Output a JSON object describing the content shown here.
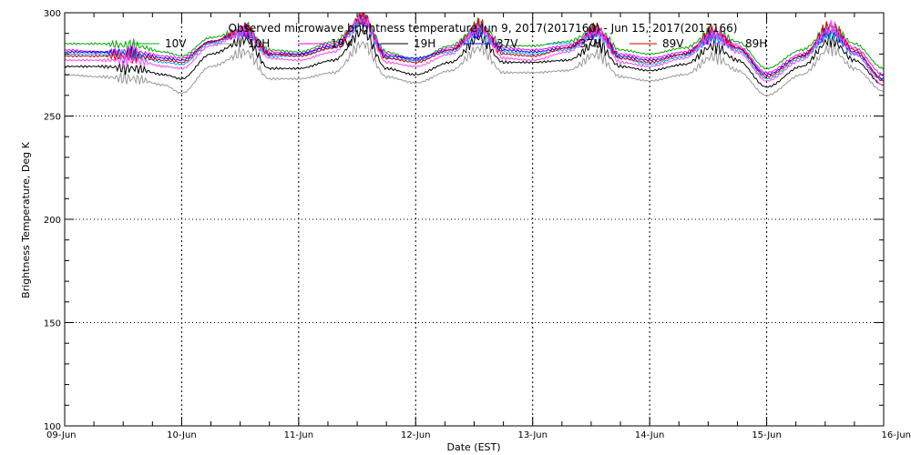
{
  "chart_data": {
    "type": "line",
    "title": "Observed microwave brightness temperature Jun  9, 2017(2017160) - Jun 15, 2017(2017166)",
    "xlabel": "Date (EST)",
    "ylabel": "Brightness Temperature, Deg K",
    "ylim": [
      100,
      300
    ],
    "yticks": [
      100,
      150,
      200,
      250,
      300
    ],
    "xticks": [
      "09-Jun",
      "10-Jun",
      "11-Jun",
      "12-Jun",
      "13-Jun",
      "14-Jun",
      "15-Jun",
      "16-Jun"
    ],
    "xlim_days": [
      0,
      7
    ],
    "grid": true,
    "legend_placement": "top",
    "key_days": [
      0,
      0.3,
      0.6,
      0.85,
      1.0,
      1.25,
      1.55,
      1.75,
      2.0,
      2.3,
      2.55,
      2.75,
      3.0,
      3.3,
      3.55,
      3.75,
      4.0,
      4.3,
      4.55,
      4.75,
      5.0,
      5.3,
      5.55,
      5.75,
      6.0,
      6.3,
      6.55,
      6.75,
      7.0
    ],
    "series": [
      {
        "name": "10V",
        "color": "#00aa00",
        "values": [
          285,
          285,
          284,
          281,
          279,
          288,
          292,
          282,
          281,
          286,
          298,
          281,
          277,
          284,
          294,
          284,
          284,
          286,
          292,
          282,
          280,
          283,
          291,
          286,
          273,
          282,
          293,
          285,
          273
        ]
      },
      {
        "name": "10H",
        "color": "#999999",
        "values": [
          270,
          269,
          268,
          265,
          261,
          274,
          281,
          268,
          268,
          271,
          285,
          269,
          266,
          272,
          283,
          271,
          271,
          272,
          280,
          269,
          267,
          270,
          279,
          272,
          260,
          270,
          283,
          273,
          262
        ]
      },
      {
        "name": "19V",
        "color": "#ff00ff",
        "values": [
          282,
          281,
          281,
          279,
          278,
          286,
          291,
          281,
          280,
          285,
          297,
          280,
          277,
          283,
          292,
          283,
          282,
          284,
          291,
          280,
          278,
          281,
          289,
          284,
          271,
          280,
          291,
          283,
          270
        ]
      },
      {
        "name": "19H",
        "color": "#000000",
        "values": [
          274,
          274,
          273,
          270,
          268,
          280,
          287,
          273,
          273,
          277,
          291,
          273,
          270,
          276,
          288,
          276,
          276,
          277,
          285,
          274,
          272,
          275,
          284,
          277,
          264,
          274,
          287,
          277,
          265
        ]
      },
      {
        "name": "37V",
        "color": "#0000ff",
        "values": [
          281,
          281,
          280,
          278,
          277,
          286,
          291,
          280,
          280,
          284,
          296,
          279,
          278,
          282,
          291,
          282,
          281,
          283,
          291,
          279,
          277,
          280,
          289,
          283,
          270,
          279,
          291,
          281,
          268
        ]
      },
      {
        "name": "37H",
        "color": "#00aaff",
        "values": [
          280,
          280,
          279,
          276,
          275,
          285,
          291,
          279,
          279,
          283,
          296,
          278,
          277,
          281,
          291,
          281,
          280,
          282,
          290,
          278,
          275,
          279,
          288,
          282,
          268,
          278,
          290,
          280,
          267
        ]
      },
      {
        "name": "89V",
        "color": "#dd0000",
        "values": [
          279,
          279,
          279,
          277,
          276,
          286,
          292,
          280,
          279,
          283,
          298,
          278,
          276,
          282,
          294,
          280,
          279,
          283,
          292,
          278,
          276,
          280,
          291,
          283,
          269,
          279,
          294,
          282,
          267
        ]
      },
      {
        "name": "89H",
        "color": "#ff44ff",
        "values": [
          277,
          277,
          277,
          274,
          273,
          284,
          291,
          278,
          277,
          281,
          297,
          276,
          274,
          280,
          293,
          278,
          277,
          281,
          291,
          276,
          274,
          278,
          290,
          281,
          267,
          277,
          293,
          280,
          265
        ]
      }
    ]
  }
}
